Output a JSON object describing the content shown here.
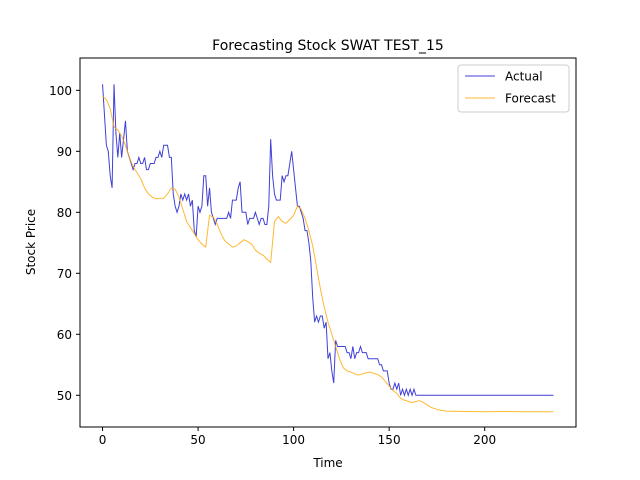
{
  "chart_data": {
    "type": "line",
    "title": "Forecasting Stock SWAT TEST_15",
    "xlabel": "Time",
    "ylabel": "Stock Price",
    "xlim": [
      -11.8,
      247.8
    ],
    "ylim": [
      44.8,
      105.3
    ],
    "xticks": [
      0,
      50,
      100,
      150,
      200
    ],
    "yticks": [
      50,
      60,
      70,
      80,
      90,
      100
    ],
    "grid": false,
    "legend_position": "top-right",
    "series": [
      {
        "name": "Actual",
        "color": "#0000cc",
        "points": [
          [
            0,
            101
          ],
          [
            1,
            96
          ],
          [
            2,
            91
          ],
          [
            3,
            90
          ],
          [
            4,
            86
          ],
          [
            5,
            84
          ],
          [
            6,
            101
          ],
          [
            7,
            93
          ],
          [
            8,
            89
          ],
          [
            9,
            93
          ],
          [
            10,
            89
          ],
          [
            11,
            92
          ],
          [
            12,
            95
          ],
          [
            13,
            90
          ],
          [
            14,
            89
          ],
          [
            15,
            88
          ],
          [
            16,
            87
          ],
          [
            17,
            88
          ],
          [
            18,
            88
          ],
          [
            19,
            89
          ],
          [
            20,
            88
          ],
          [
            21,
            88
          ],
          [
            22,
            89
          ],
          [
            23,
            87
          ],
          [
            24,
            87
          ],
          [
            25,
            88
          ],
          [
            26,
            88
          ],
          [
            27,
            88
          ],
          [
            28,
            89
          ],
          [
            29,
            89
          ],
          [
            30,
            90
          ],
          [
            31,
            89
          ],
          [
            32,
            91
          ],
          [
            33,
            91
          ],
          [
            34,
            91
          ],
          [
            35,
            89
          ],
          [
            36,
            89
          ],
          [
            37,
            83
          ],
          [
            38,
            81
          ],
          [
            39,
            80
          ],
          [
            40,
            81
          ],
          [
            41,
            83
          ],
          [
            42,
            82
          ],
          [
            43,
            83
          ],
          [
            44,
            82
          ],
          [
            45,
            83
          ],
          [
            46,
            81
          ],
          [
            47,
            82
          ],
          [
            48,
            77
          ],
          [
            49,
            76
          ],
          [
            50,
            81
          ],
          [
            51,
            80
          ],
          [
            52,
            81
          ],
          [
            53,
            86
          ],
          [
            54,
            86
          ],
          [
            55,
            81
          ],
          [
            56,
            84
          ],
          [
            57,
            80
          ],
          [
            58,
            79
          ],
          [
            59,
            78
          ],
          [
            60,
            79
          ],
          [
            61,
            79
          ],
          [
            62,
            79
          ],
          [
            63,
            79
          ],
          [
            64,
            79
          ],
          [
            65,
            79
          ],
          [
            66,
            80
          ],
          [
            67,
            79
          ],
          [
            68,
            82
          ],
          [
            69,
            82
          ],
          [
            70,
            82
          ],
          [
            71,
            84
          ],
          [
            72,
            85
          ],
          [
            73,
            80
          ],
          [
            74,
            80
          ],
          [
            75,
            80
          ],
          [
            76,
            78
          ],
          [
            77,
            79
          ],
          [
            78,
            79
          ],
          [
            79,
            79
          ],
          [
            80,
            80
          ],
          [
            81,
            79
          ],
          [
            82,
            78
          ],
          [
            83,
            79
          ],
          [
            84,
            79
          ],
          [
            85,
            78
          ],
          [
            86,
            78
          ],
          [
            87,
            81
          ],
          [
            88,
            92
          ],
          [
            89,
            86
          ],
          [
            90,
            83
          ],
          [
            91,
            82
          ],
          [
            92,
            82
          ],
          [
            93,
            82
          ],
          [
            94,
            86
          ],
          [
            95,
            85
          ],
          [
            96,
            86
          ],
          [
            97,
            86
          ],
          [
            98,
            88
          ],
          [
            99,
            90
          ],
          [
            100,
            87
          ],
          [
            101,
            84
          ],
          [
            102,
            81
          ],
          [
            103,
            81
          ],
          [
            104,
            80
          ],
          [
            105,
            79
          ],
          [
            106,
            77
          ],
          [
            107,
            77
          ],
          [
            108,
            75
          ],
          [
            109,
            72
          ],
          [
            110,
            66
          ],
          [
            111,
            62
          ],
          [
            112,
            63
          ],
          [
            113,
            62
          ],
          [
            114,
            63
          ],
          [
            115,
            63
          ],
          [
            116,
            61
          ],
          [
            117,
            62
          ],
          [
            118,
            56
          ],
          [
            119,
            57
          ],
          [
            120,
            54
          ],
          [
            121,
            52
          ],
          [
            122,
            59
          ],
          [
            123,
            58
          ],
          [
            124,
            58
          ],
          [
            125,
            58
          ],
          [
            126,
            58
          ],
          [
            127,
            58
          ],
          [
            128,
            57
          ],
          [
            129,
            57
          ],
          [
            130,
            56
          ],
          [
            131,
            58
          ],
          [
            132,
            56
          ],
          [
            133,
            57
          ],
          [
            134,
            57
          ],
          [
            135,
            58
          ],
          [
            136,
            57
          ],
          [
            137,
            57
          ],
          [
            138,
            57
          ],
          [
            139,
            56
          ],
          [
            140,
            56
          ],
          [
            141,
            56
          ],
          [
            142,
            56
          ],
          [
            143,
            56
          ],
          [
            144,
            56
          ],
          [
            145,
            55
          ],
          [
            146,
            55
          ],
          [
            147,
            54
          ],
          [
            148,
            54
          ],
          [
            149,
            54
          ],
          [
            150,
            52
          ],
          [
            151,
            51
          ],
          [
            152,
            51
          ],
          [
            153,
            52
          ],
          [
            154,
            51
          ],
          [
            155,
            52
          ],
          [
            156,
            50
          ],
          [
            157,
            51
          ],
          [
            158,
            50
          ],
          [
            159,
            51
          ],
          [
            160,
            50
          ],
          [
            161,
            51
          ],
          [
            162,
            50
          ],
          [
            163,
            51
          ],
          [
            164,
            50
          ],
          [
            165,
            50
          ],
          [
            166,
            50
          ],
          [
            167,
            50
          ],
          [
            168,
            50
          ],
          [
            169,
            50
          ],
          [
            170,
            50
          ],
          [
            180,
            50
          ],
          [
            190,
            50
          ],
          [
            200,
            50
          ],
          [
            210,
            50
          ],
          [
            220,
            50
          ],
          [
            230,
            50
          ],
          [
            236,
            50
          ]
        ]
      },
      {
        "name": "Forecast",
        "color": "#ffa500",
        "points": [
          [
            0,
            99.0
          ],
          [
            2,
            98.5
          ],
          [
            4,
            97.0
          ],
          [
            6,
            94.0
          ],
          [
            8,
            93.5
          ],
          [
            10,
            92.5
          ],
          [
            12,
            91.0
          ],
          [
            14,
            89.0
          ],
          [
            16,
            87.5
          ],
          [
            18,
            86.5
          ],
          [
            20,
            85.5
          ],
          [
            22,
            84.0
          ],
          [
            24,
            83.0
          ],
          [
            26,
            82.5
          ],
          [
            28,
            82.2
          ],
          [
            30,
            82.3
          ],
          [
            32,
            82.3
          ],
          [
            34,
            83.0
          ],
          [
            36,
            84.0
          ],
          [
            38,
            83.8
          ],
          [
            40,
            82.5
          ],
          [
            42,
            80.5
          ],
          [
            44,
            78.5
          ],
          [
            46,
            77.5
          ],
          [
            48,
            76.5
          ],
          [
            50,
            75.5
          ],
          [
            52,
            74.8
          ],
          [
            54,
            74.3
          ],
          [
            56,
            79.5
          ],
          [
            58,
            79.2
          ],
          [
            60,
            78.0
          ],
          [
            62,
            76.5
          ],
          [
            64,
            75.3
          ],
          [
            66,
            74.8
          ],
          [
            68,
            74.3
          ],
          [
            70,
            74.5
          ],
          [
            72,
            75.0
          ],
          [
            74,
            75.5
          ],
          [
            76,
            75.2
          ],
          [
            78,
            74.8
          ],
          [
            80,
            73.8
          ],
          [
            82,
            73.3
          ],
          [
            84,
            73.0
          ],
          [
            86,
            72.3
          ],
          [
            88,
            71.8
          ],
          [
            90,
            78.5
          ],
          [
            92,
            79.3
          ],
          [
            94,
            78.5
          ],
          [
            96,
            78.2
          ],
          [
            98,
            78.8
          ],
          [
            100,
            79.5
          ],
          [
            102,
            81.0
          ],
          [
            104,
            80.5
          ],
          [
            106,
            79.0
          ],
          [
            108,
            77.0
          ],
          [
            110,
            74.5
          ],
          [
            112,
            71.0
          ],
          [
            114,
            67.5
          ],
          [
            116,
            64.5
          ],
          [
            118,
            62.0
          ],
          [
            120,
            60.0
          ],
          [
            122,
            58.0
          ],
          [
            124,
            56.0
          ],
          [
            126,
            54.5
          ],
          [
            128,
            54.0
          ],
          [
            130,
            53.8
          ],
          [
            132,
            53.5
          ],
          [
            134,
            53.3
          ],
          [
            136,
            53.5
          ],
          [
            138,
            53.7
          ],
          [
            140,
            53.8
          ],
          [
            142,
            53.6
          ],
          [
            144,
            53.4
          ],
          [
            146,
            53.0
          ],
          [
            148,
            52.3
          ],
          [
            150,
            51.5
          ],
          [
            152,
            50.8
          ],
          [
            154,
            50.3
          ],
          [
            156,
            49.5
          ],
          [
            158,
            49.2
          ],
          [
            160,
            49.0
          ],
          [
            162,
            48.8
          ],
          [
            164,
            49.0
          ],
          [
            166,
            49.1
          ],
          [
            168,
            48.8
          ],
          [
            170,
            48.4
          ],
          [
            172,
            48.0
          ],
          [
            174,
            47.8
          ],
          [
            176,
            47.6
          ],
          [
            178,
            47.5
          ],
          [
            180,
            47.4
          ],
          [
            190,
            47.35
          ],
          [
            200,
            47.3
          ],
          [
            210,
            47.35
          ],
          [
            220,
            47.3
          ],
          [
            230,
            47.3
          ],
          [
            236,
            47.3
          ]
        ]
      }
    ]
  }
}
